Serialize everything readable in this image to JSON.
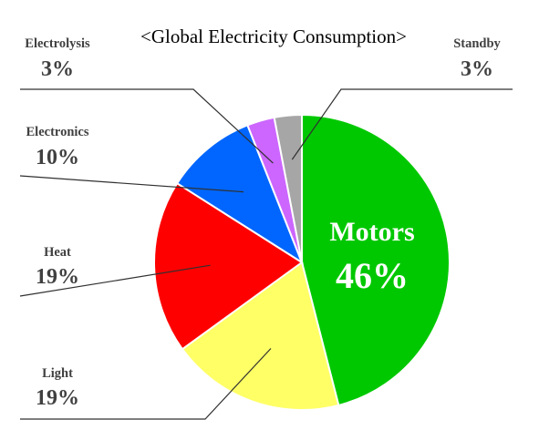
{
  "chart_data": {
    "type": "pie",
    "title": "<Global Electricity Consumption>",
    "start": "top",
    "direction": "clockwise",
    "slices": [
      {
        "label": "Motors",
        "value": 46,
        "value_label": "46%",
        "color": "#00c800",
        "label_position": "inside"
      },
      {
        "label": "Light",
        "value": 19,
        "value_label": "19%",
        "color": "#ffff66",
        "label_position": "outside-left"
      },
      {
        "label": "Heat",
        "value": 19,
        "value_label": "19%",
        "color": "#ff0000",
        "label_position": "outside-left"
      },
      {
        "label": "Electronics",
        "value": 10,
        "value_label": "10%",
        "color": "#0066ff",
        "label_position": "outside-left"
      },
      {
        "label": "Electrolysis",
        "value": 3,
        "value_label": "3%",
        "color": "#cc66ff",
        "label_position": "outside-left"
      },
      {
        "label": "Standby",
        "value": 3,
        "value_label": "3%",
        "color": "#a6a6a6",
        "label_position": "outside-right"
      }
    ]
  }
}
